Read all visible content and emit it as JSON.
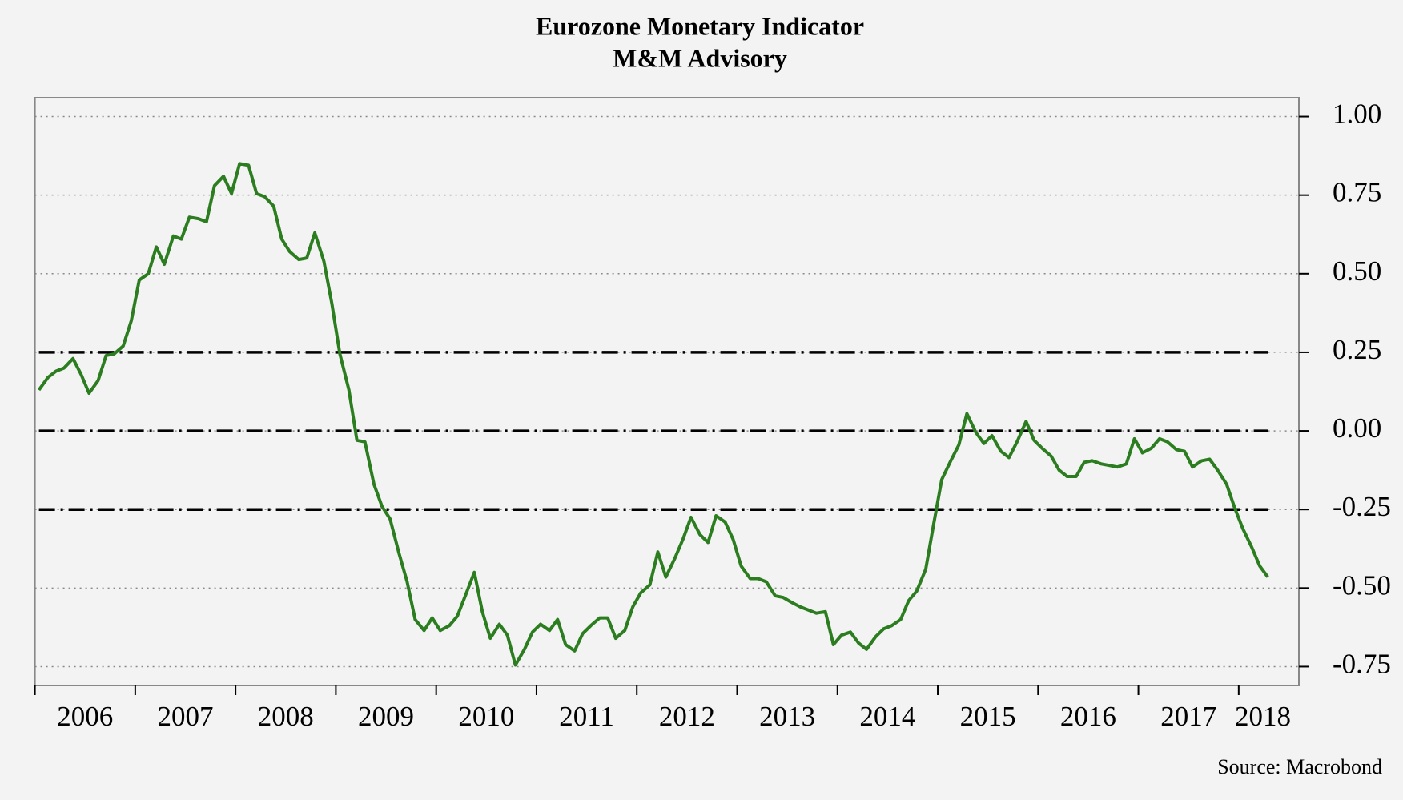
{
  "chart_data": {
    "type": "line",
    "title": "Eurozone Monetary Indicator",
    "subtitle": "M&M Advisory",
    "source": "Source: Macrobond",
    "xlim": [
      2006,
      2018.6
    ],
    "xticks": [
      2006,
      2007,
      2008,
      2009,
      2010,
      2011,
      2012,
      2013,
      2014,
      2015,
      2016,
      2017,
      2018
    ],
    "ylim": [
      -0.81,
      1.06
    ],
    "yticks": [
      {
        "value": 1,
        "label": "1.00"
      },
      {
        "value": 0.75,
        "label": "0.75"
      },
      {
        "value": 0.5,
        "label": "0.50"
      },
      {
        "value": 0.25,
        "label": "0.25"
      },
      {
        "value": 0,
        "label": "0.00"
      },
      {
        "value": -0.25,
        "label": "-0.25"
      },
      {
        "value": -0.5,
        "label": "-0.50"
      },
      {
        "value": -0.75,
        "label": "-0.75"
      }
    ],
    "grid": true,
    "reference_lines": [
      0.25,
      0,
      -0.25
    ],
    "series": [
      {
        "color": "#2b7d1f",
        "x": [
          2006.04,
          2006.13,
          2006.21,
          2006.29,
          2006.38,
          2006.46,
          2006.54,
          2006.63,
          2006.71,
          2006.79,
          2006.88,
          2006.96,
          2007.04,
          2007.13,
          2007.21,
          2007.29,
          2007.38,
          2007.46,
          2007.54,
          2007.63,
          2007.71,
          2007.79,
          2007.88,
          2007.96,
          2008.04,
          2008.13,
          2008.21,
          2008.29,
          2008.38,
          2008.46,
          2008.54,
          2008.63,
          2008.71,
          2008.79,
          2008.88,
          2008.96,
          2009.04,
          2009.13,
          2009.21,
          2009.29,
          2009.38,
          2009.46,
          2009.54,
          2009.63,
          2009.71,
          2009.79,
          2009.88,
          2009.96,
          2010.04,
          2010.13,
          2010.21,
          2010.29,
          2010.38,
          2010.46,
          2010.54,
          2010.63,
          2010.71,
          2010.79,
          2010.88,
          2010.96,
          2011.04,
          2011.13,
          2011.21,
          2011.29,
          2011.38,
          2011.46,
          2011.54,
          2011.63,
          2011.71,
          2011.79,
          2011.88,
          2011.96,
          2012.04,
          2012.13,
          2012.21,
          2012.29,
          2012.38,
          2012.46,
          2012.54,
          2012.63,
          2012.71,
          2012.79,
          2012.88,
          2012.96,
          2013.04,
          2013.13,
          2013.21,
          2013.29,
          2013.38,
          2013.46,
          2013.54,
          2013.63,
          2013.71,
          2013.79,
          2013.88,
          2013.96,
          2014.04,
          2014.13,
          2014.21,
          2014.29,
          2014.38,
          2014.46,
          2014.54,
          2014.63,
          2014.71,
          2014.79,
          2014.88,
          2014.96,
          2015.04,
          2015.13,
          2015.21,
          2015.29,
          2015.38,
          2015.46,
          2015.54,
          2015.63,
          2015.71,
          2015.79,
          2015.88,
          2015.96,
          2016.04,
          2016.13,
          2016.21,
          2016.29,
          2016.38,
          2016.46,
          2016.54,
          2016.63,
          2016.71,
          2016.79,
          2016.88,
          2016.96,
          2017.04,
          2017.13,
          2017.21,
          2017.29,
          2017.38,
          2017.46,
          2017.54,
          2017.63,
          2017.71,
          2017.79,
          2017.88,
          2017.96,
          2018.04,
          2018.13,
          2018.21,
          2018.29
        ],
        "values": [
          0.13,
          0.17,
          0.19,
          0.2,
          0.23,
          0.18,
          0.12,
          0.16,
          0.24,
          0.245,
          0.27,
          0.35,
          0.48,
          0.5,
          0.585,
          0.53,
          0.62,
          0.61,
          0.68,
          0.675,
          0.665,
          0.78,
          0.81,
          0.755,
          0.85,
          0.845,
          0.755,
          0.745,
          0.715,
          0.61,
          0.57,
          0.545,
          0.55,
          0.63,
          0.54,
          0.405,
          0.245,
          0.13,
          -0.03,
          -0.035,
          -0.17,
          -0.24,
          -0.28,
          -0.39,
          -0.48,
          -0.6,
          -0.635,
          -0.595,
          -0.635,
          -0.62,
          -0.59,
          -0.525,
          -0.45,
          -0.575,
          -0.66,
          -0.615,
          -0.65,
          -0.745,
          -0.695,
          -0.64,
          -0.615,
          -0.635,
          -0.6,
          -0.68,
          -0.7,
          -0.645,
          -0.62,
          -0.595,
          -0.595,
          -0.66,
          -0.635,
          -0.56,
          -0.515,
          -0.49,
          -0.385,
          -0.465,
          -0.405,
          -0.345,
          -0.275,
          -0.33,
          -0.355,
          -0.27,
          -0.29,
          -0.345,
          -0.43,
          -0.47,
          -0.47,
          -0.48,
          -0.525,
          -0.53,
          -0.545,
          -0.56,
          -0.57,
          -0.58,
          -0.575,
          -0.68,
          -0.65,
          -0.64,
          -0.675,
          -0.695,
          -0.655,
          -0.63,
          -0.62,
          -0.6,
          -0.54,
          -0.51,
          -0.44,
          -0.295,
          -0.155,
          -0.095,
          -0.045,
          0.055,
          -0.005,
          -0.04,
          -0.015,
          -0.065,
          -0.085,
          -0.035,
          0.03,
          -0.03,
          -0.055,
          -0.08,
          -0.125,
          -0.145,
          -0.145,
          -0.1,
          -0.095,
          -0.105,
          -0.11,
          -0.115,
          -0.105,
          -0.025,
          -0.07,
          -0.055,
          -0.025,
          -0.035,
          -0.06,
          -0.065,
          -0.115,
          -0.095,
          -0.09,
          -0.125,
          -0.17,
          -0.245,
          -0.31,
          -0.37,
          -0.43,
          -0.465
        ]
      }
    ]
  }
}
